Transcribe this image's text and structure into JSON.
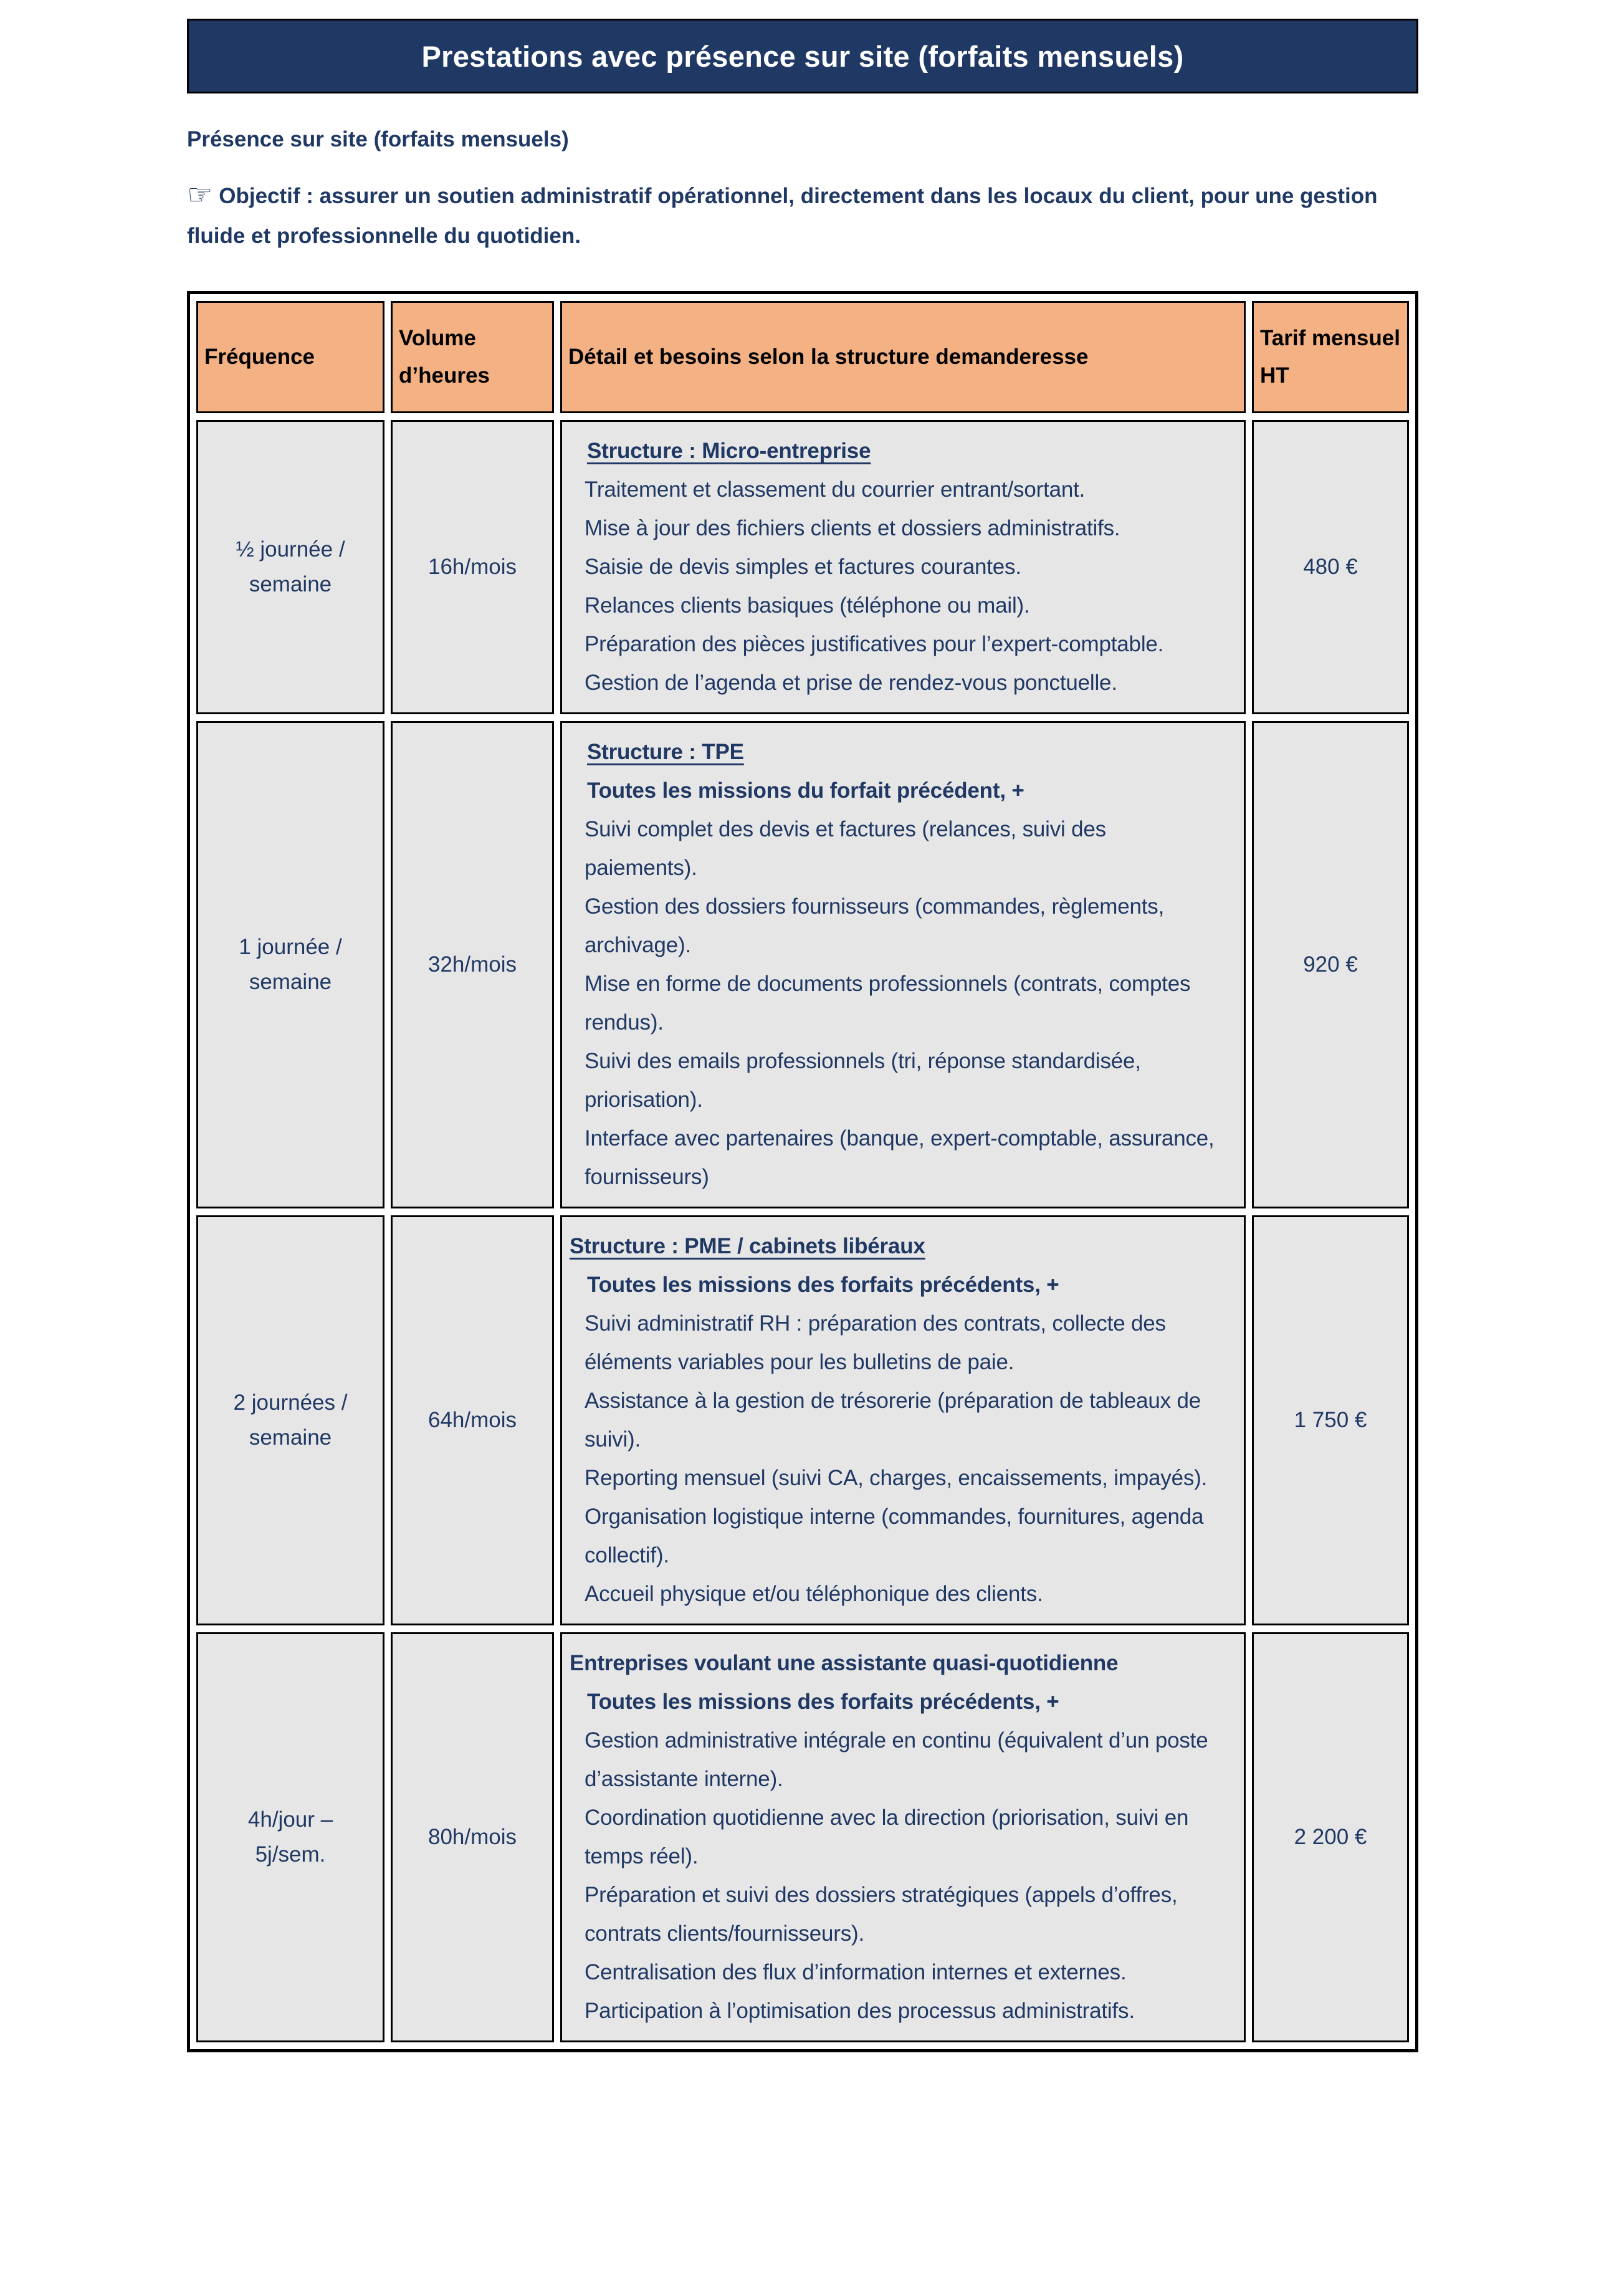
{
  "header": {
    "title": "Prestations avec présence sur site (forfaits mensuels)",
    "subtitle": "Présence sur site (forfaits mensuels)"
  },
  "objective": {
    "icon": "☞",
    "text": "Objectif : assurer un soutien administratif opérationnel, directement dans les locaux du client, pour une gestion fluide et professionnelle du quotidien."
  },
  "colors": {
    "title_bar_fill": "#1F3864",
    "title_text": "#FFFFFF",
    "body_text": "#1F3864",
    "table_header_fill": "#F4B183",
    "table_cell_fill": "#E7E6E6",
    "border": "#000000"
  },
  "table": {
    "headers": [
      "Fréquence",
      "Volume d’heures",
      "Détail et besoins selon la structure demanderesse",
      "Tarif mensuel HT"
    ],
    "rows": [
      {
        "frequency": "½ journée / semaine",
        "volume": "16h/mois",
        "heading": "Structure : Micro-entreprise",
        "items": [
          "Traitement et classement du courrier entrant/sortant.",
          "Mise à jour des fichiers clients et dossiers administratifs.",
          "Saisie de devis simples et factures courantes.",
          "Relances clients basiques (téléphone ou mail).",
          "Préparation des pièces justificatives pour l’expert-comptable.",
          "Gestion de l’agenda et prise de rendez-vous ponctuelle."
        ],
        "price": "480 €"
      },
      {
        "frequency": "1 journée / semaine",
        "volume": "32h/mois",
        "heading": "Structure : TPE",
        "subheading": "Toutes les missions du forfait précédent, +",
        "items": [
          "Suivi complet des devis et factures (relances, suivi des paiements).",
          "Gestion des dossiers fournisseurs (commandes, règlements, archivage).",
          "Mise en forme de documents professionnels (contrats, comptes rendus).",
          "Suivi des emails professionnels (tri, réponse standardisée, priorisation).",
          "Interface avec partenaires (banque, expert-comptable, assurance, fournisseurs)"
        ],
        "price": "920 €"
      },
      {
        "frequency": "2 journées / semaine",
        "volume": "64h/mois",
        "heading": "Structure : PME / cabinets libéraux",
        "subheading": "Toutes les missions des forfaits précédents, +",
        "items": [
          "Suivi administratif RH : préparation des contrats, collecte des éléments variables pour les bulletins de paie.",
          "Assistance à la gestion de trésorerie (préparation de tableaux de suivi).",
          "Reporting mensuel (suivi CA, charges, encaissements, impayés).",
          "Organisation logistique interne (commandes, fournitures, agenda collectif).",
          "Accueil physique et/ou téléphonique des clients."
        ],
        "price": "1 750 €"
      },
      {
        "frequency": "4h/jour – 5j/sem.",
        "volume": "80h/mois",
        "heading": "Entreprises voulant une assistante quasi-quotidienne",
        "subheading": "Toutes les missions des forfaits précédents, +",
        "items": [
          "Gestion administrative intégrale en continu (équivalent d’un poste d’assistante interne).",
          "Coordination quotidienne avec la direction (priorisation, suivi en temps réel).",
          "Préparation et suivi des dossiers stratégiques (appels d’offres, contrats clients/fournisseurs).",
          "Centralisation des flux d’information internes et externes.",
          "Participation à l’optimisation des processus administratifs."
        ],
        "price": "2 200 €"
      }
    ]
  }
}
